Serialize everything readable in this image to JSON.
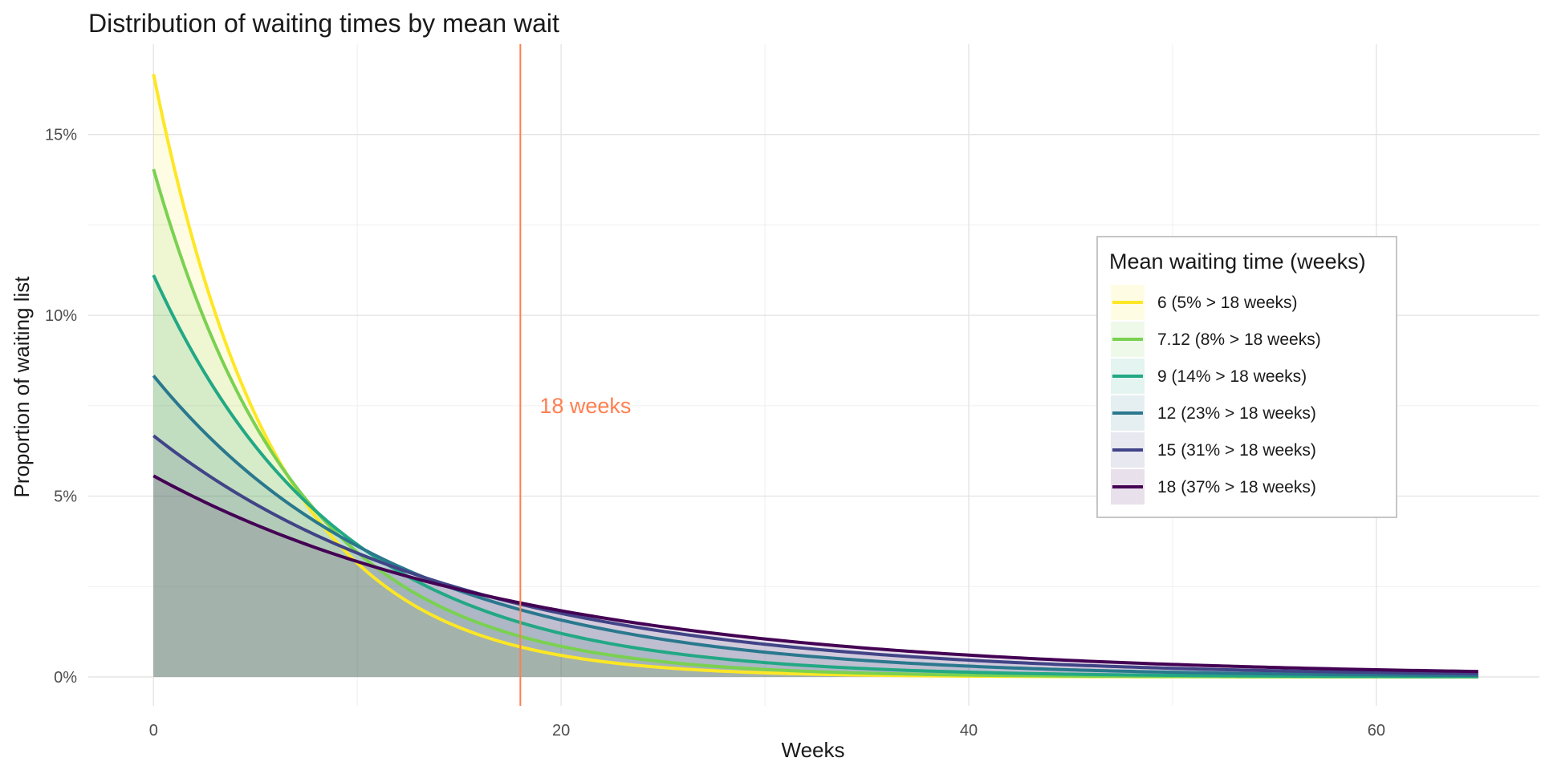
{
  "chart_data": {
    "type": "area",
    "title": "Distribution of waiting times by mean wait",
    "xlabel": "Weeks",
    "ylabel": "Proportion of waiting list",
    "x_ticks": [
      "0",
      "20",
      "40",
      "60"
    ],
    "y_ticks": [
      "0%",
      "5%",
      "10%",
      "15%"
    ],
    "xlim": [
      -3.2,
      68
    ],
    "ylim": [
      -0.8,
      17.5
    ],
    "x_range": [
      0,
      65
    ],
    "grid": true,
    "vline": {
      "x": 18,
      "label": "18 weeks",
      "color": "#FF7F50"
    },
    "legend": {
      "title": "Mean waiting time (weeks)",
      "position": "right"
    },
    "series": [
      {
        "name": "6 (5% > 18 weeks)",
        "mean": 6,
        "color": "#FDE725",
        "fill": "#FDE725",
        "y_at_0": 16.67
      },
      {
        "name": "7.12 (8% > 18 weeks)",
        "mean": 7.12,
        "color": "#7AD151",
        "fill": "#7AD151",
        "y_at_0": 14.04
      },
      {
        "name": "9 (14% > 18 weeks)",
        "mean": 9,
        "color": "#22A884",
        "fill": "#22A884",
        "y_at_0": 11.11
      },
      {
        "name": "12 (23% > 18 weeks)",
        "mean": 12,
        "color": "#2A788E",
        "fill": "#2A788E",
        "y_at_0": 8.33
      },
      {
        "name": "15 (31% > 18 weeks)",
        "mean": 15,
        "color": "#414487",
        "fill": "#414487",
        "y_at_0": 6.67
      },
      {
        "name": "18 (37% > 18 weeks)",
        "mean": 18,
        "color": "#440154",
        "fill": "#440154",
        "y_at_0": 5.56
      }
    ]
  }
}
